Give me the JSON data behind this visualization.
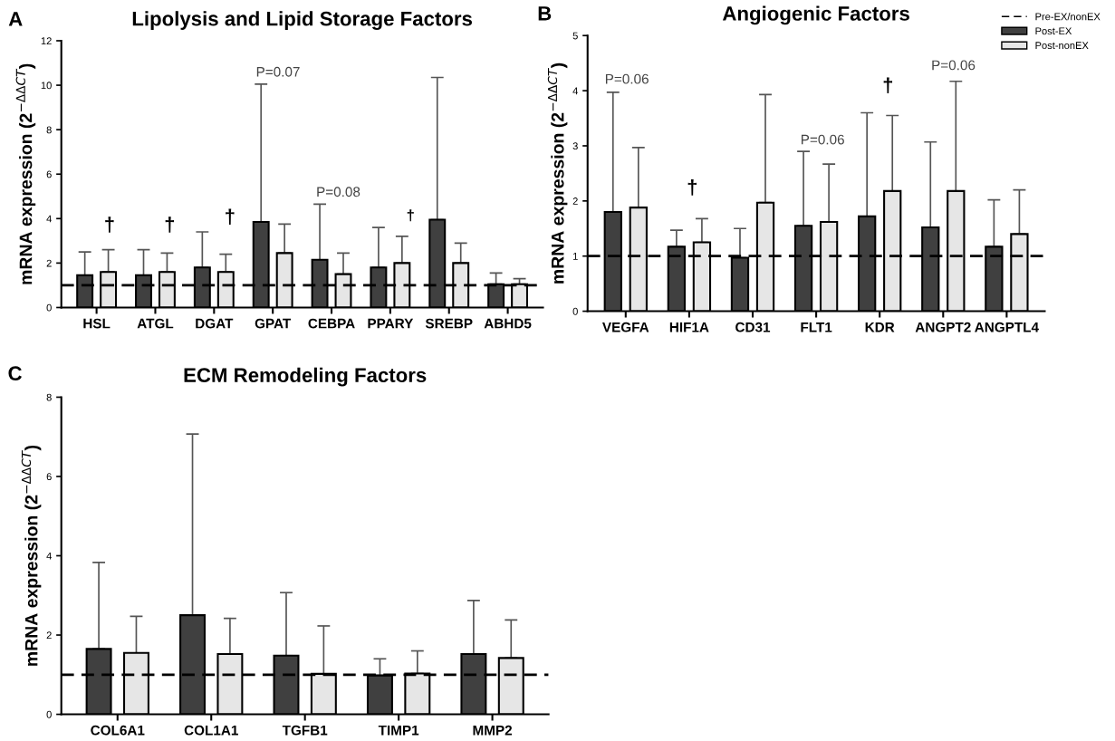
{
  "chart_data": [
    {
      "type": "bar",
      "title": "Lipolysis and Lipid Storage Factors",
      "ylabel": "mRNA expression (2$^{−ΔΔCT}$)",
      "categories": [
        "HSL",
        "ATGL",
        "DGAT",
        "GPAT",
        "CEBPA",
        "PPARY",
        "SREBP",
        "ABHD5"
      ],
      "series": [
        {
          "name": "Post-EX",
          "color": "#404040",
          "values": [
            1.45,
            1.45,
            1.8,
            3.85,
            2.15,
            1.8,
            3.95,
            1.05
          ],
          "errors": [
            [
              1.45,
              2.5
            ],
            [
              1.45,
              2.6
            ],
            [
              1.8,
              3.4
            ],
            [
              3.85,
              10.05
            ],
            [
              2.15,
              4.65
            ],
            [
              1.8,
              3.6
            ],
            [
              3.95,
              10.35
            ],
            [
              1.05,
              1.55
            ]
          ]
        },
        {
          "name": "Post-nonEX",
          "color": "#e6e6e6",
          "values": [
            1.6,
            1.6,
            1.6,
            2.45,
            1.5,
            2.0,
            2.0,
            1.05
          ],
          "errors": [
            [
              1.6,
              2.6
            ],
            [
              1.6,
              2.45
            ],
            [
              1.6,
              2.4
            ],
            [
              2.45,
              3.75
            ],
            [
              1.5,
              2.45
            ],
            [
              2.0,
              3.2
            ],
            [
              2.0,
              2.9
            ],
            [
              1.05,
              1.3
            ]
          ]
        }
      ],
      "ylim": [
        0,
        12
      ],
      "yticks": [
        0,
        2,
        4,
        6,
        8,
        10,
        12
      ],
      "grid": false,
      "legend": "top right",
      "ref_lines": [
        {
          "axis": "y",
          "value": 1,
          "label": "Pre-EX/nonEX",
          "color": "#000000",
          "line_style": "dashed"
        }
      ],
      "annotations": [
        "A",
        "†",
        "†",
        "†",
        "P=0.07",
        "P=0.08",
        "†"
      ]
    },
    {
      "type": "bar",
      "title": "Angiogenic Factors",
      "ylabel": "mRNA expression (2$^{−ΔΔCT}$)",
      "categories": [
        "VEGFA",
        "HIF1A",
        "CD31",
        "FLT1",
        "KDR",
        "ANGPT2",
        "ANGPTL4"
      ],
      "series": [
        {
          "name": "Post-EX",
          "color": "#404040",
          "values": [
            1.8,
            1.17,
            0.97,
            1.55,
            1.72,
            1.52,
            1.17
          ],
          "errors": [
            [
              1.8,
              3.97
            ],
            [
              1.17,
              1.47
            ],
            [
              0.97,
              1.5
            ],
            [
              1.55,
              2.9
            ],
            [
              1.72,
              3.6
            ],
            [
              1.52,
              3.07
            ],
            [
              1.17,
              2.02
            ]
          ]
        },
        {
          "name": "Post-nonEX",
          "color": "#e6e6e6",
          "values": [
            1.88,
            1.25,
            1.97,
            1.62,
            2.18,
            2.18,
            1.4
          ],
          "errors": [
            [
              1.88,
              2.97
            ],
            [
              1.25,
              1.68
            ],
            [
              1.97,
              3.93
            ],
            [
              1.62,
              2.67
            ],
            [
              2.18,
              3.55
            ],
            [
              2.18,
              4.17
            ],
            [
              1.4,
              2.2
            ]
          ]
        }
      ],
      "ylim": [
        0,
        5
      ],
      "yticks": [
        0,
        1,
        2,
        3,
        4,
        5
      ],
      "grid": false,
      "legend": "top right",
      "ref_lines": [
        {
          "axis": "y",
          "value": 1,
          "color": "#000000",
          "line_style": "dashed"
        }
      ],
      "annotations": [
        "B",
        "P=0.06",
        "†",
        "P=0.06",
        "†",
        "P=0.06"
      ]
    },
    {
      "type": "bar",
      "title": "ECM Remodeling Factors",
      "ylabel": "mRNA expression (2$^{−ΔΔCT}$)",
      "categories": [
        "COL6A1",
        "COL1A1",
        "TGFB1",
        "TIMP1",
        "MMP2"
      ],
      "series": [
        {
          "name": "Post-EX",
          "color": "#404040",
          "values": [
            1.65,
            2.5,
            1.48,
            0.98,
            1.52
          ],
          "errors": [
            [
              1.65,
              3.83
            ],
            [
              2.5,
              7.07
            ],
            [
              1.48,
              3.07
            ],
            [
              0.98,
              1.4
            ],
            [
              1.52,
              2.87
            ]
          ]
        },
        {
          "name": "Post-nonEX",
          "color": "#e6e6e6",
          "values": [
            1.55,
            1.52,
            1.02,
            1.03,
            1.42
          ],
          "errors": [
            [
              1.55,
              2.47
            ],
            [
              1.52,
              2.42
            ],
            [
              1.02,
              2.23
            ],
            [
              1.03,
              1.6
            ],
            [
              1.42,
              2.38
            ]
          ]
        }
      ],
      "ylim": [
        0,
        8
      ],
      "yticks": [
        0,
        2,
        4,
        6,
        8
      ],
      "grid": false,
      "legend": "top right",
      "ref_lines": [
        {
          "axis": "y",
          "value": 1,
          "color": "#000000",
          "line_style": "dashed"
        }
      ],
      "annotations": [
        "C"
      ]
    }
  ]
}
